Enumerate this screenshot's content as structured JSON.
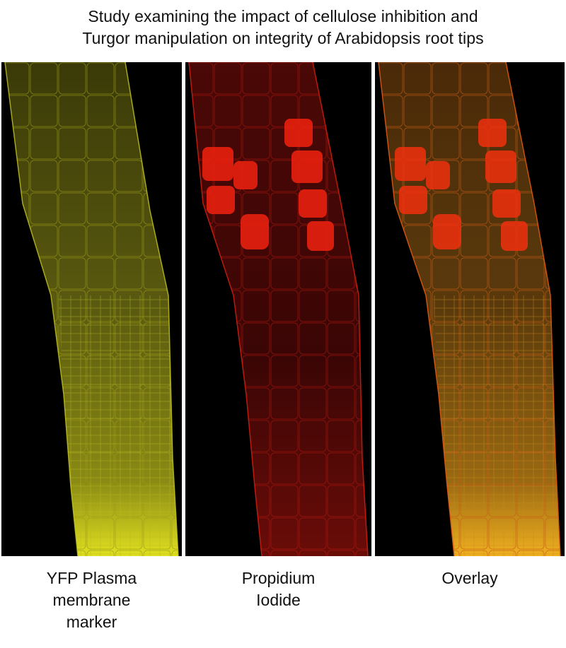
{
  "figure": {
    "title_lines": [
      "Study examining the impact of cellulose inhibition and",
      "Turgor manipulation on integrity of Arabidopsis root tips"
    ],
    "panels": [
      {
        "id": "yfp",
        "caption_lines": [
          "YFP Plasma",
          "membrane",
          "marker"
        ],
        "tint": "#e6e622",
        "tint_bright": "#ffff33"
      },
      {
        "id": "pi",
        "caption_lines": [
          "Propidium",
          "Iodide"
        ],
        "tint": "#e02010",
        "tint_bright": "#ff2a1a"
      },
      {
        "id": "overlay",
        "caption_lines": [
          "Overlay"
        ],
        "tint": "#e07010",
        "tint_bright": "#ffb020"
      }
    ]
  }
}
